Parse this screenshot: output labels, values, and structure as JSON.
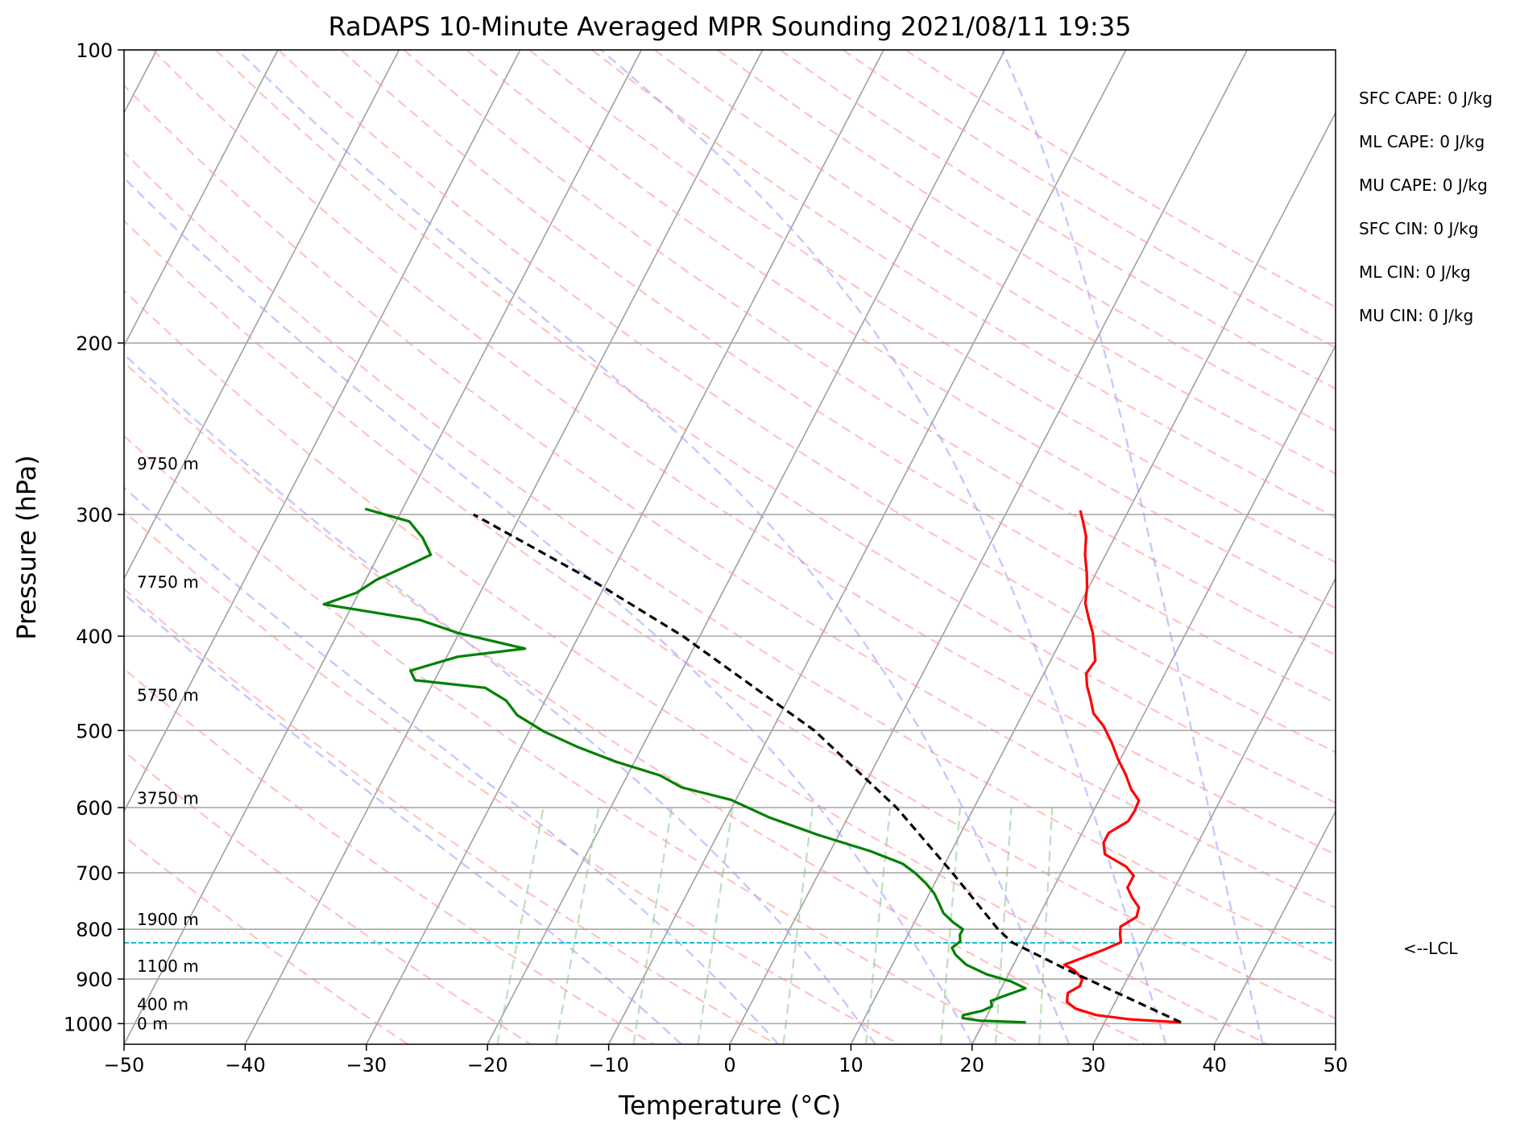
{
  "chart_data": {
    "type": "line",
    "title": "RaDAPS 10-Minute Averaged MPR Sounding 2021/08/11 19:35",
    "xlabel": "Temperature (°C)",
    "ylabel": "Pressure (hPa)",
    "xlim": [
      -50,
      50
    ],
    "ylim": [
      1050,
      100
    ],
    "y_scale": "log",
    "skew": "skew-T log-p",
    "grid": true,
    "x_ticks": [
      -50,
      -40,
      -30,
      -20,
      -10,
      0,
      10,
      20,
      30,
      40,
      50
    ],
    "x_tick_labels": [
      "−50",
      "−40",
      "−30",
      "−20",
      "−10",
      "0",
      "10",
      "20",
      "30",
      "40",
      "50"
    ],
    "y_ticks": [
      100,
      200,
      300,
      400,
      500,
      600,
      700,
      800,
      900,
      1000
    ],
    "y_tick_labels": [
      "100",
      "200",
      "300",
      "400",
      "500",
      "600",
      "700",
      "800",
      "900",
      "1000"
    ],
    "series": [
      {
        "role": "temperature",
        "color": "#ff0000",
        "points": [
          [
            997,
            36.3
          ],
          [
            990,
            32.0
          ],
          [
            980,
            29.0
          ],
          [
            965,
            27.0
          ],
          [
            950,
            26.0
          ],
          [
            930,
            25.7
          ],
          [
            915,
            26.4
          ],
          [
            900,
            26.3
          ],
          [
            882,
            25.3
          ],
          [
            870,
            24.2
          ],
          [
            855,
            25.5
          ],
          [
            840,
            26.8
          ],
          [
            825,
            27.9
          ],
          [
            810,
            27.5
          ],
          [
            795,
            27.2
          ],
          [
            777,
            28.1
          ],
          [
            760,
            27.9
          ],
          [
            742,
            26.9
          ],
          [
            725,
            26.1
          ],
          [
            705,
            26.1
          ],
          [
            690,
            25.1
          ],
          [
            670,
            22.8
          ],
          [
            652,
            22.2
          ],
          [
            637,
            22.2
          ],
          [
            620,
            23.3
          ],
          [
            605,
            23.4
          ],
          [
            590,
            23.3
          ],
          [
            575,
            22.2
          ],
          [
            555,
            21.1
          ],
          [
            535,
            19.8
          ],
          [
            515,
            18.6
          ],
          [
            495,
            17.2
          ],
          [
            480,
            15.8
          ],
          [
            465,
            15.0
          ],
          [
            450,
            14.1
          ],
          [
            437,
            13.5
          ],
          [
            424,
            13.7
          ],
          [
            410,
            13.0
          ],
          [
            397,
            12.3
          ],
          [
            383,
            11.3
          ],
          [
            370,
            10.4
          ],
          [
            357,
            9.9
          ],
          [
            344,
            9.2
          ],
          [
            330,
            8.3
          ],
          [
            316,
            7.6
          ],
          [
            305,
            6.7
          ],
          [
            297,
            6.0
          ]
        ]
      },
      {
        "role": "dewpoint",
        "color": "#008000",
        "points": [
          [
            997,
            23.5
          ],
          [
            993,
            19.6
          ],
          [
            987,
            18.1
          ],
          [
            980,
            18.0
          ],
          [
            970,
            19.4
          ],
          [
            960,
            20.0
          ],
          [
            948,
            19.7
          ],
          [
            935,
            20.7
          ],
          [
            920,
            22.0
          ],
          [
            905,
            20.5
          ],
          [
            890,
            18.2
          ],
          [
            870,
            16.1
          ],
          [
            850,
            14.8
          ],
          [
            836,
            14.2
          ],
          [
            823,
            14.6
          ],
          [
            811,
            14.3
          ],
          [
            800,
            14.3
          ],
          [
            787,
            13.2
          ],
          [
            770,
            12.0
          ],
          [
            752,
            11.2
          ],
          [
            735,
            10.4
          ],
          [
            718,
            9.3
          ],
          [
            701,
            8.0
          ],
          [
            685,
            6.5
          ],
          [
            665,
            3.3
          ],
          [
            640,
            -1.7
          ],
          [
            614,
            -6.5
          ],
          [
            589,
            -10.4
          ],
          [
            572,
            -15.0
          ],
          [
            556,
            -17.3
          ],
          [
            538,
            -21.6
          ],
          [
            520,
            -25.3
          ],
          [
            501,
            -28.8
          ],
          [
            482,
            -31.7
          ],
          [
            466,
            -33.2
          ],
          [
            452,
            -35.5
          ],
          [
            444,
            -41.6
          ],
          [
            434,
            -42.4
          ],
          [
            420,
            -39.1
          ],
          [
            412,
            -33.9
          ],
          [
            397,
            -40.1
          ],
          [
            385,
            -43.8
          ],
          [
            371,
            -52.4
          ],
          [
            361,
            -50.2
          ],
          [
            350,
            -49.1
          ],
          [
            340,
            -47.4
          ],
          [
            330,
            -45.7
          ],
          [
            317,
            -47.1
          ],
          [
            305,
            -48.9
          ],
          [
            296,
            -53.1
          ]
        ]
      },
      {
        "role": "parcel",
        "color": "#000000",
        "dashed": true,
        "points": [
          [
            997,
            36.3
          ],
          [
            880,
            24.6
          ],
          [
            825,
            18.9
          ],
          [
            800,
            17.2
          ],
          [
            700,
            11.0
          ],
          [
            600,
            3.6
          ],
          [
            500,
            -6.5
          ],
          [
            400,
            -21.4
          ],
          [
            350,
            -31.4
          ],
          [
            300,
            -43.9
          ]
        ]
      }
    ],
    "lcl": {
      "pressure": 826,
      "color": "#17becf",
      "label": "<--LCL"
    },
    "height_labels": [
      {
        "pressure": 266,
        "text": "9750 m"
      },
      {
        "pressure": 352,
        "text": "7750 m"
      },
      {
        "pressure": 460,
        "text": "5750 m"
      },
      {
        "pressure": 587,
        "text": "3750 m"
      },
      {
        "pressure": 782,
        "text": "1900 m"
      },
      {
        "pressure": 873,
        "text": "1100 m"
      },
      {
        "pressure": 956,
        "text": "400 m"
      },
      {
        "pressure": 1000,
        "text": "0 m"
      }
    ],
    "indices": [
      "SFC CAPE: 0 J/kg",
      "ML CAPE: 0 J/kg",
      "MU CAPE: 0 J/kg",
      "SFC CIN: 0 J/kg",
      "ML CIN: 0 J/kg",
      "MU CIN: 0 J/kg"
    ],
    "background_lines": {
      "isotherm_color": "#a0a0a0",
      "dry_adiabat_color": "#ff9999",
      "moist_adiabat_color": "#9999ff",
      "mixing_ratio_color": "#8fc98f"
    }
  }
}
